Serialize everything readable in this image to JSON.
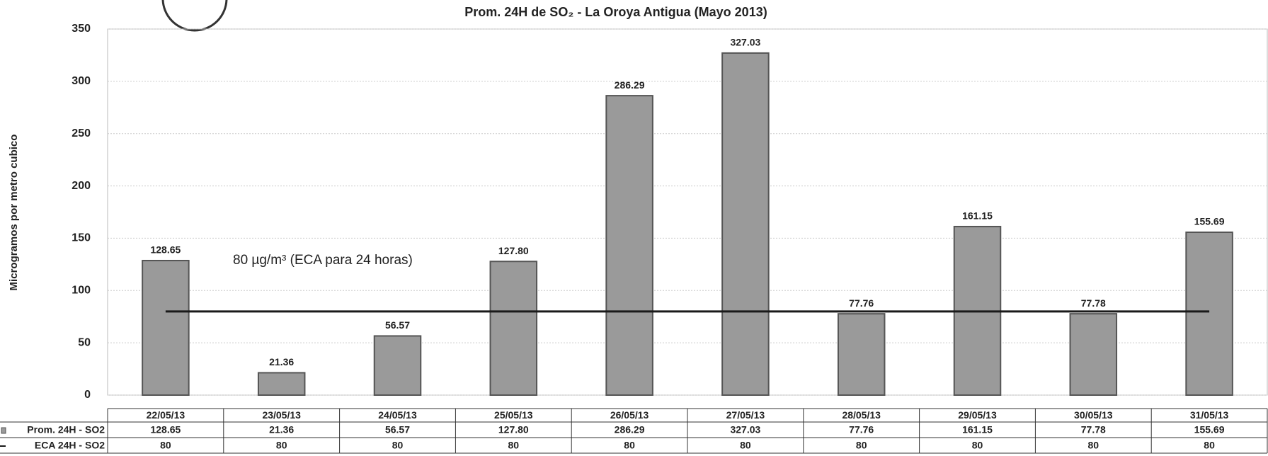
{
  "chart_data": {
    "type": "bar",
    "title": "Prom. 24H de SO₂ - La Oroya Antigua  (Mayo 2013)",
    "y_label": "Microgramos por metro cubico",
    "annotation": "80 µg/m³ (ECA para 24 horas)",
    "categories": [
      "22/05/13",
      "23/05/13",
      "24/05/13",
      "25/05/13",
      "26/05/13",
      "27/05/13",
      "28/05/13",
      "29/05/13",
      "30/05/13",
      "31/05/13"
    ],
    "series": [
      {
        "name": "Prom. 24H - SO2",
        "type": "bar",
        "color": "#9a9a9a",
        "values": [
          128.65,
          21.36,
          56.57,
          127.8,
          286.29,
          327.03,
          77.76,
          161.15,
          77.78,
          155.69
        ],
        "value_labels": [
          "128.65",
          "21.36",
          "56.57",
          "127.80",
          "286.29",
          "327.03",
          "77.76",
          "161.15",
          "77.78",
          "155.69"
        ]
      },
      {
        "name": "ECA 24H - SO2",
        "type": "line",
        "color": "#1a1a1a",
        "values": [
          80,
          80,
          80,
          80,
          80,
          80,
          80,
          80,
          80,
          80
        ]
      }
    ],
    "ylim": [
      0,
      350
    ],
    "yticks": [
      0,
      50,
      100,
      150,
      200,
      250,
      300,
      350
    ],
    "grid": true
  }
}
